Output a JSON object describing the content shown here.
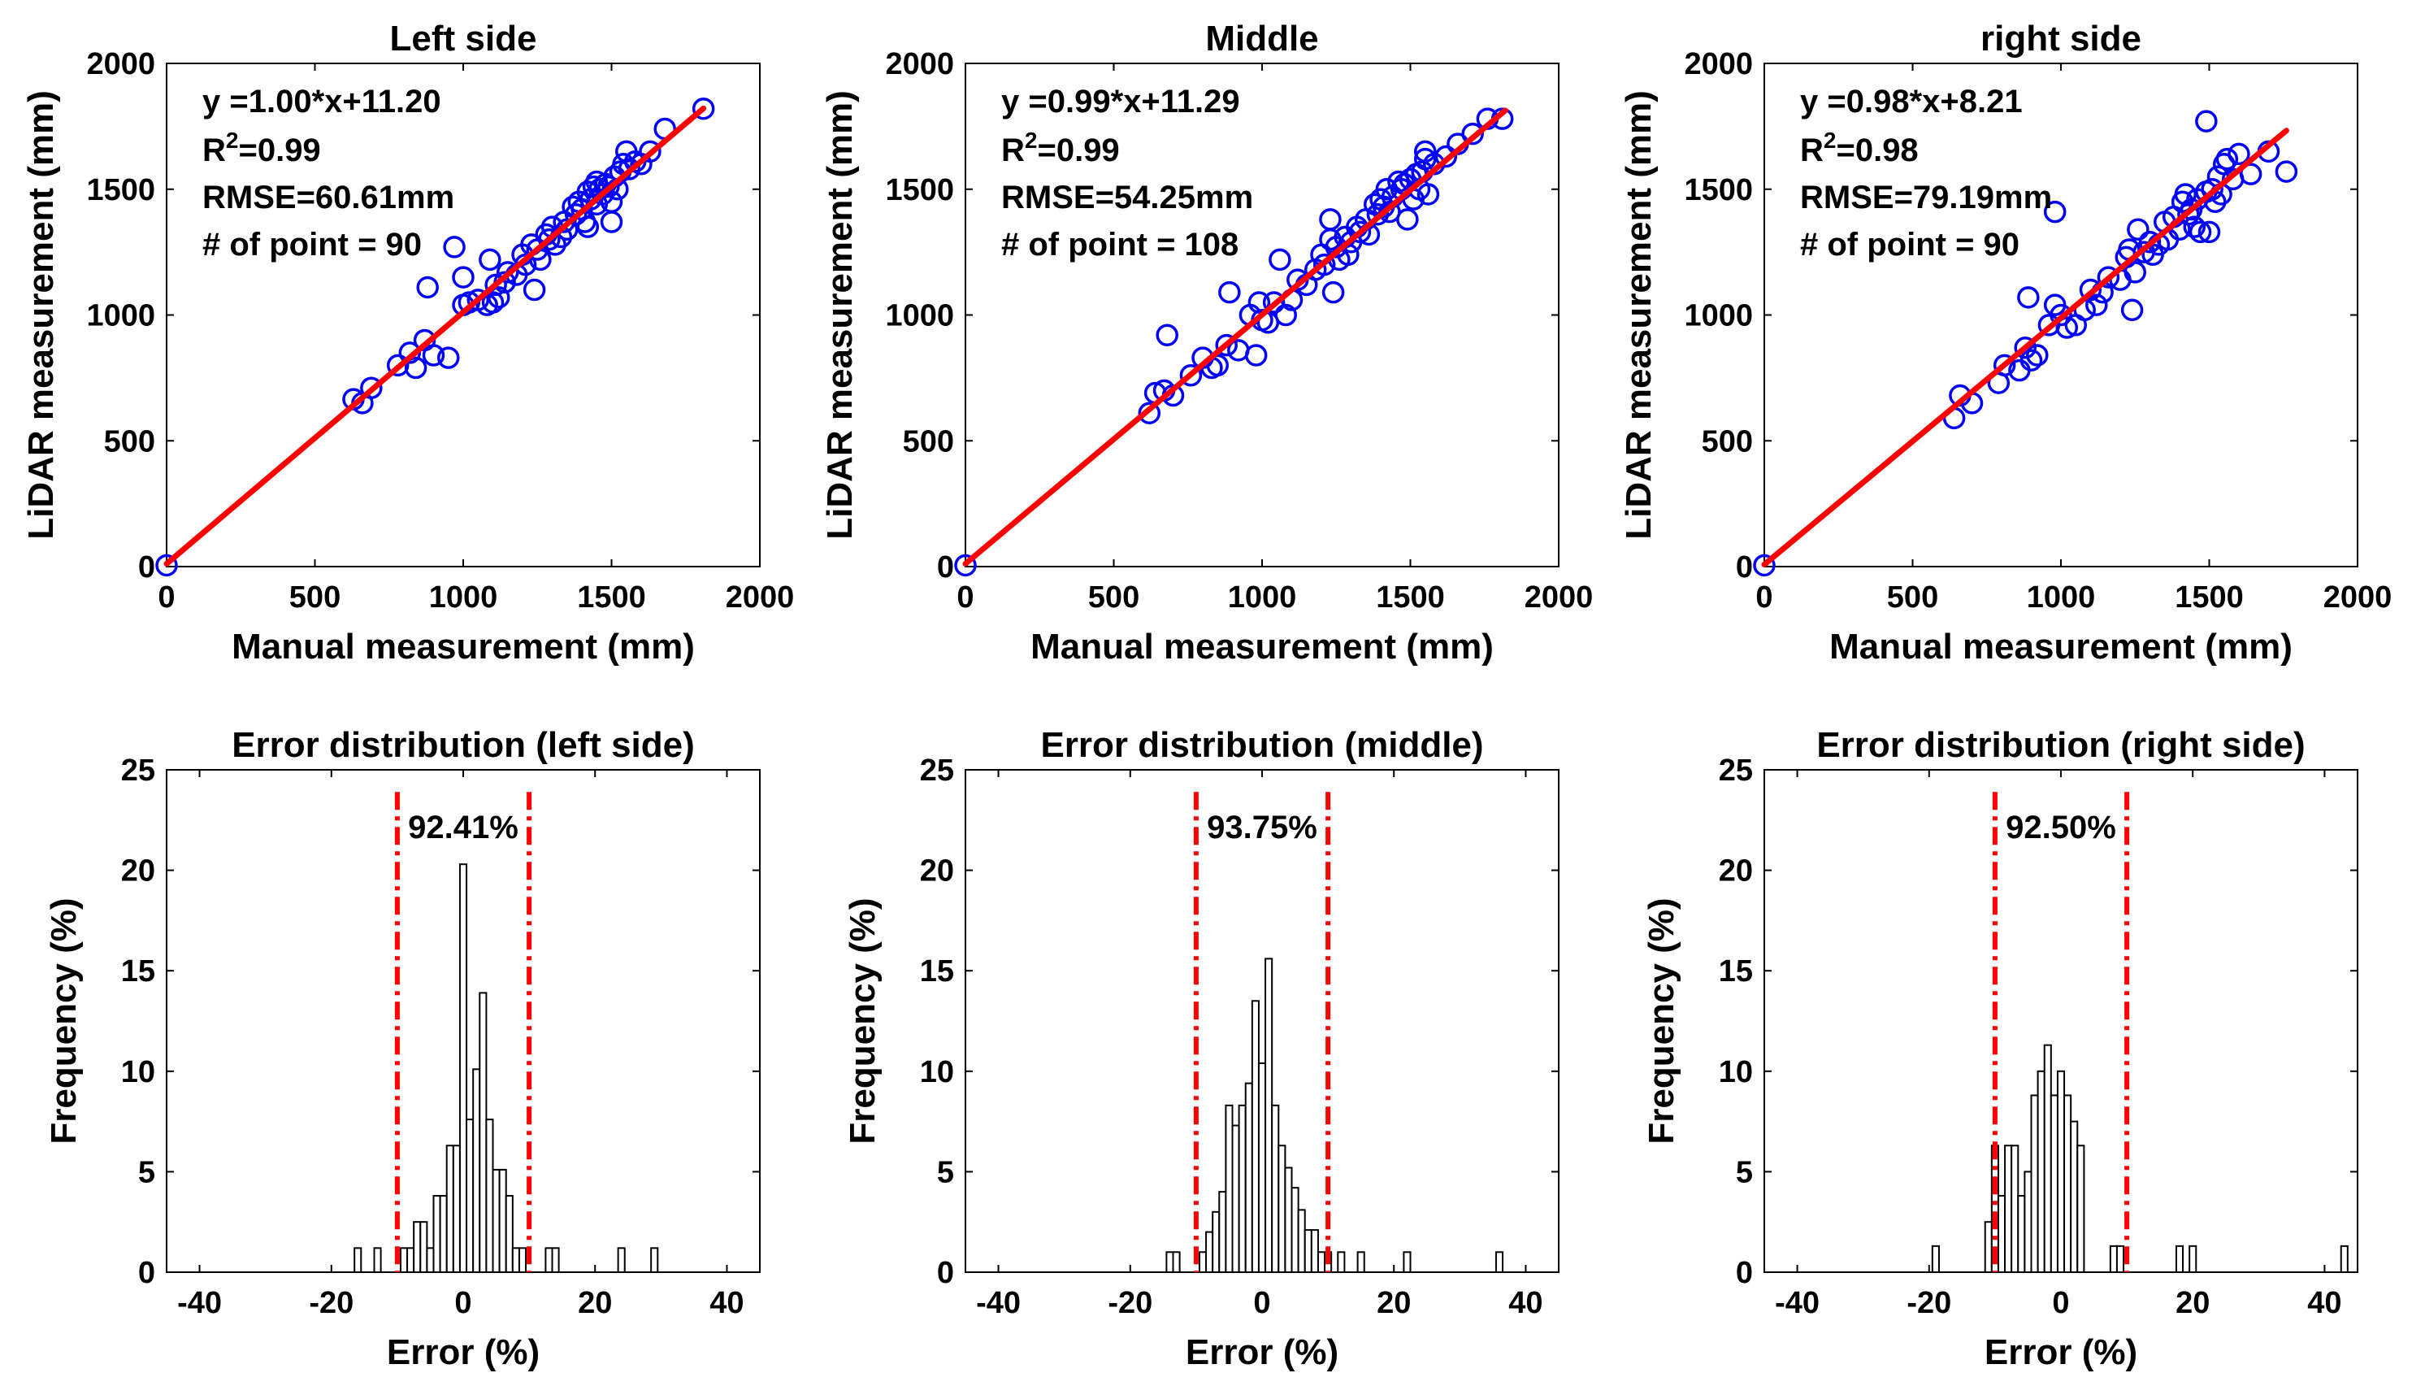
{
  "chart_data": [
    {
      "type": "scatter",
      "title": "Left side",
      "xlabel": "Manual measurement  (mm)",
      "ylabel": "LiDAR measurement  (mm)",
      "xlim": [
        0,
        2000
      ],
      "ylim": [
        0,
        2000
      ],
      "xticks": [
        0,
        500,
        1000,
        1500,
        2000
      ],
      "yticks": [
        0,
        500,
        1000,
        1500,
        2000
      ],
      "fit": {
        "slope": 1.0,
        "intercept": 11.2,
        "x_range": [
          0,
          1810
        ]
      },
      "annotations": {
        "equation": "y =1.00*x+11.20",
        "r2_label": "R",
        "r2_sup": "2",
        "r2_value": "=0.99",
        "rmse": "RMSE=60.61mm",
        "points": "# of point = 90"
      },
      "points": [
        [
          0,
          5
        ],
        [
          630,
          665
        ],
        [
          660,
          650
        ],
        [
          690,
          710
        ],
        [
          780,
          800
        ],
        [
          820,
          850
        ],
        [
          840,
          790
        ],
        [
          870,
          900
        ],
        [
          880,
          1110
        ],
        [
          900,
          840
        ],
        [
          950,
          830
        ],
        [
          970,
          1270
        ],
        [
          1000,
          1150
        ],
        [
          1000,
          1040
        ],
        [
          1020,
          1050
        ],
        [
          1050,
          1060
        ],
        [
          1080,
          1040
        ],
        [
          1090,
          1220
        ],
        [
          1100,
          1050
        ],
        [
          1110,
          1120
        ],
        [
          1120,
          1070
        ],
        [
          1140,
          1130
        ],
        [
          1150,
          1170
        ],
        [
          1180,
          1160
        ],
        [
          1200,
          1240
        ],
        [
          1210,
          1200
        ],
        [
          1230,
          1280
        ],
        [
          1240,
          1100
        ],
        [
          1250,
          1260
        ],
        [
          1260,
          1220
        ],
        [
          1280,
          1320
        ],
        [
          1290,
          1300
        ],
        [
          1300,
          1350
        ],
        [
          1310,
          1280
        ],
        [
          1330,
          1310
        ],
        [
          1340,
          1370
        ],
        [
          1350,
          1340
        ],
        [
          1370,
          1430
        ],
        [
          1380,
          1400
        ],
        [
          1390,
          1450
        ],
        [
          1400,
          1420
        ],
        [
          1410,
          1370
        ],
        [
          1420,
          1350
        ],
        [
          1420,
          1490
        ],
        [
          1430,
          1460
        ],
        [
          1440,
          1510
        ],
        [
          1450,
          1440
        ],
        [
          1450,
          1530
        ],
        [
          1460,
          1500
        ],
        [
          1470,
          1480
        ],
        [
          1480,
          1520
        ],
        [
          1490,
          1510
        ],
        [
          1500,
          1450
        ],
        [
          1500,
          1370
        ],
        [
          1510,
          1550
        ],
        [
          1520,
          1500
        ],
        [
          1530,
          1570
        ],
        [
          1540,
          1600
        ],
        [
          1550,
          1650
        ],
        [
          1560,
          1580
        ],
        [
          1580,
          1610
        ],
        [
          1600,
          1600
        ],
        [
          1630,
          1650
        ],
        [
          1680,
          1740
        ],
        [
          1810,
          1820
        ]
      ]
    },
    {
      "type": "scatter",
      "title": "Middle",
      "xlabel": "Manual measurement  (mm)",
      "ylabel": "LiDAR measurement  (mm)",
      "xlim": [
        0,
        2000
      ],
      "ylim": [
        0,
        2000
      ],
      "xticks": [
        0,
        500,
        1000,
        1500,
        2000
      ],
      "yticks": [
        0,
        500,
        1000,
        1500,
        2000
      ],
      "fit": {
        "slope": 0.99,
        "intercept": 11.29,
        "x_range": [
          0,
          1820
        ]
      },
      "annotations": {
        "equation": "y =0.99*x+11.29",
        "r2_label": "R",
        "r2_sup": "2",
        "r2_value": "=0.99",
        "rmse": "RMSE=54.25mm",
        "points": "# of point = 108"
      },
      "points": [
        [
          0,
          5
        ],
        [
          620,
          610
        ],
        [
          640,
          690
        ],
        [
          670,
          700
        ],
        [
          680,
          920
        ],
        [
          700,
          680
        ],
        [
          760,
          760
        ],
        [
          800,
          830
        ],
        [
          830,
          790
        ],
        [
          850,
          800
        ],
        [
          880,
          880
        ],
        [
          890,
          1090
        ],
        [
          920,
          860
        ],
        [
          960,
          1000
        ],
        [
          980,
          840
        ],
        [
          990,
          1050
        ],
        [
          1000,
          980
        ],
        [
          1020,
          970
        ],
        [
          1040,
          1050
        ],
        [
          1060,
          1220
        ],
        [
          1080,
          1000
        ],
        [
          1100,
          1060
        ],
        [
          1120,
          1140
        ],
        [
          1150,
          1120
        ],
        [
          1180,
          1180
        ],
        [
          1200,
          1240
        ],
        [
          1210,
          1200
        ],
        [
          1230,
          1300
        ],
        [
          1230,
          1380
        ],
        [
          1240,
          1090
        ],
        [
          1250,
          1270
        ],
        [
          1260,
          1220
        ],
        [
          1280,
          1310
        ],
        [
          1290,
          1240
        ],
        [
          1300,
          1290
        ],
        [
          1320,
          1350
        ],
        [
          1330,
          1330
        ],
        [
          1350,
          1380
        ],
        [
          1360,
          1320
        ],
        [
          1380,
          1440
        ],
        [
          1390,
          1400
        ],
        [
          1400,
          1460
        ],
        [
          1410,
          1430
        ],
        [
          1420,
          1500
        ],
        [
          1430,
          1410
        ],
        [
          1440,
          1470
        ],
        [
          1460,
          1530
        ],
        [
          1470,
          1500
        ],
        [
          1480,
          1520
        ],
        [
          1490,
          1380
        ],
        [
          1500,
          1540
        ],
        [
          1510,
          1460
        ],
        [
          1520,
          1560
        ],
        [
          1530,
          1500
        ],
        [
          1540,
          1570
        ],
        [
          1550,
          1620
        ],
        [
          1550,
          1650
        ],
        [
          1560,
          1480
        ],
        [
          1580,
          1600
        ],
        [
          1620,
          1630
        ],
        [
          1660,
          1680
        ],
        [
          1710,
          1720
        ],
        [
          1760,
          1780
        ],
        [
          1810,
          1780
        ]
      ]
    },
    {
      "type": "scatter",
      "title": "right side",
      "xlabel": "Manual measurement  (mm)",
      "ylabel": "LiDAR measurement  (mm)",
      "xlim": [
        0,
        2000
      ],
      "ylim": [
        0,
        2000
      ],
      "xticks": [
        0,
        500,
        1000,
        1500,
        2000
      ],
      "yticks": [
        0,
        500,
        1000,
        1500,
        2000
      ],
      "fit": {
        "slope": 0.98,
        "intercept": 8.21,
        "x_range": [
          0,
          1760
        ]
      },
      "annotations": {
        "equation": "y =0.98*x+8.21",
        "r2_label": "R",
        "r2_sup": "2",
        "r2_value": "=0.98",
        "rmse": "RMSE=79.19mm",
        "points": "# of point = 90"
      },
      "points": [
        [
          0,
          5
        ],
        [
          640,
          590
        ],
        [
          660,
          680
        ],
        [
          700,
          650
        ],
        [
          790,
          730
        ],
        [
          810,
          800
        ],
        [
          860,
          780
        ],
        [
          880,
          870
        ],
        [
          890,
          1070
        ],
        [
          900,
          820
        ],
        [
          920,
          840
        ],
        [
          960,
          960
        ],
        [
          980,
          1040
        ],
        [
          980,
          1410
        ],
        [
          1000,
          1000
        ],
        [
          1020,
          950
        ],
        [
          1050,
          960
        ],
        [
          1080,
          1020
        ],
        [
          1100,
          1100
        ],
        [
          1120,
          1040
        ],
        [
          1140,
          1090
        ],
        [
          1160,
          1150
        ],
        [
          1200,
          1140
        ],
        [
          1220,
          1230
        ],
        [
          1230,
          1260
        ],
        [
          1240,
          1020
        ],
        [
          1250,
          1170
        ],
        [
          1260,
          1340
        ],
        [
          1280,
          1250
        ],
        [
          1300,
          1290
        ],
        [
          1310,
          1240
        ],
        [
          1330,
          1280
        ],
        [
          1350,
          1370
        ],
        [
          1360,
          1300
        ],
        [
          1380,
          1390
        ],
        [
          1400,
          1340
        ],
        [
          1410,
          1450
        ],
        [
          1420,
          1480
        ],
        [
          1430,
          1400
        ],
        [
          1440,
          1420
        ],
        [
          1450,
          1350
        ],
        [
          1460,
          1460
        ],
        [
          1470,
          1330
        ],
        [
          1490,
          1490
        ],
        [
          1490,
          1770
        ],
        [
          1500,
          1330
        ],
        [
          1510,
          1500
        ],
        [
          1520,
          1450
        ],
        [
          1530,
          1550
        ],
        [
          1540,
          1480
        ],
        [
          1550,
          1600
        ],
        [
          1560,
          1620
        ],
        [
          1580,
          1540
        ],
        [
          1600,
          1640
        ],
        [
          1640,
          1560
        ],
        [
          1700,
          1650
        ],
        [
          1760,
          1570
        ]
      ]
    },
    {
      "type": "bar",
      "subtype": "histogram",
      "title": "Error distribution (left side)",
      "xlabel": "Error  (%)",
      "ylabel": "Frequency  (%)",
      "xlim": [
        -45,
        45
      ],
      "ylim": [
        0,
        25
      ],
      "xticks": [
        -40,
        -20,
        0,
        20,
        40
      ],
      "yticks": [
        0,
        5,
        10,
        15,
        20,
        25
      ],
      "bin_width": 1,
      "bins": [
        [
          -16,
          1.2
        ],
        [
          -13,
          1.2
        ],
        [
          -9,
          1.2
        ],
        [
          -8,
          1.2
        ],
        [
          -7,
          2.5
        ],
        [
          -6,
          2.5
        ],
        [
          -5,
          1.2
        ],
        [
          -4,
          3.8
        ],
        [
          -3,
          3.8
        ],
        [
          -2,
          6.3
        ],
        [
          -1,
          6.3
        ],
        [
          0,
          20.3
        ],
        [
          1,
          7.6
        ],
        [
          2,
          10.1
        ],
        [
          3,
          13.9
        ],
        [
          4,
          7.6
        ],
        [
          5,
          5.1
        ],
        [
          6,
          5.1
        ],
        [
          7,
          3.8
        ],
        [
          8,
          1.2
        ],
        [
          9,
          1.2
        ],
        [
          13,
          1.2
        ],
        [
          14,
          1.2
        ],
        [
          24,
          1.2
        ],
        [
          29,
          1.2
        ]
      ],
      "threshold_lines": [
        -10,
        10
      ],
      "percent_label": "92.41%"
    },
    {
      "type": "bar",
      "subtype": "histogram",
      "title": "Error distribution (middle)",
      "xlabel": "Error  (%)",
      "ylabel": "Frequency  (%)",
      "xlim": [
        -45,
        45
      ],
      "ylim": [
        0,
        25
      ],
      "xticks": [
        -40,
        -20,
        0,
        20,
        40
      ],
      "yticks": [
        0,
        5,
        10,
        15,
        20,
        25
      ],
      "bin_width": 1,
      "bins": [
        [
          -14,
          1
        ],
        [
          -13,
          1
        ],
        [
          -9,
          1
        ],
        [
          -8,
          2
        ],
        [
          -7,
          3
        ],
        [
          -6,
          4
        ],
        [
          -5,
          8.3
        ],
        [
          -4,
          7.3
        ],
        [
          -3,
          8.3
        ],
        [
          -2,
          9.4
        ],
        [
          -1,
          13.5
        ],
        [
          0,
          10.4
        ],
        [
          1,
          15.6
        ],
        [
          2,
          8.3
        ],
        [
          3,
          6.3
        ],
        [
          4,
          5.2
        ],
        [
          5,
          4.2
        ],
        [
          6,
          3.1
        ],
        [
          7,
          2.1
        ],
        [
          8,
          2.1
        ],
        [
          9,
          1
        ],
        [
          10,
          1
        ],
        [
          12,
          1
        ],
        [
          15,
          1
        ],
        [
          22,
          1
        ],
        [
          36,
          1
        ]
      ],
      "threshold_lines": [
        -10,
        10
      ],
      "percent_label": "93.75%"
    },
    {
      "type": "bar",
      "subtype": "histogram",
      "title": "Error distribution (right side)",
      "xlabel": "Error  (%)",
      "ylabel": "Frequency  (%)",
      "xlim": [
        -45,
        45
      ],
      "ylim": [
        0,
        25
      ],
      "xticks": [
        -40,
        -20,
        0,
        20,
        40
      ],
      "yticks": [
        0,
        5,
        10,
        15,
        20,
        25
      ],
      "bin_width": 1,
      "bins": [
        [
          -19,
          1.3
        ],
        [
          -11,
          2.5
        ],
        [
          -10,
          6.3
        ],
        [
          -9,
          3.8
        ],
        [
          -8,
          6.3
        ],
        [
          -7,
          6.3
        ],
        [
          -6,
          3.8
        ],
        [
          -5,
          5
        ],
        [
          -4,
          8.8
        ],
        [
          -3,
          10
        ],
        [
          -2,
          11.3
        ],
        [
          -1,
          8.8
        ],
        [
          0,
          10
        ],
        [
          1,
          8.8
        ],
        [
          2,
          7.5
        ],
        [
          3,
          6.3
        ],
        [
          8,
          1.3
        ],
        [
          9,
          1.3
        ],
        [
          18,
          1.3
        ],
        [
          20,
          1.3
        ],
        [
          43,
          1.3
        ]
      ],
      "threshold_lines": [
        -10,
        10
      ],
      "percent_label": "92.50%"
    }
  ]
}
